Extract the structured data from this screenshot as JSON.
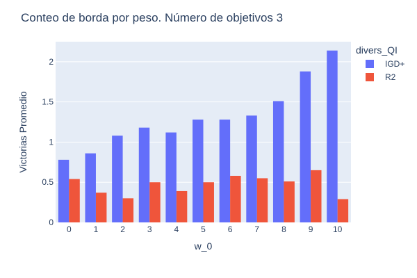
{
  "chart_data": {
    "type": "bar",
    "title": "Conteo de borda por peso. Número de objetivos 3",
    "xlabel": "w_0",
    "ylabel": "Victorias Promedio",
    "categories": [
      "0",
      "1",
      "2",
      "3",
      "4",
      "5",
      "6",
      "7",
      "8",
      "9",
      "10"
    ],
    "series": [
      {
        "name": "IGD+",
        "color": "#636efa",
        "values": [
          0.78,
          0.86,
          1.08,
          1.18,
          1.12,
          1.28,
          1.28,
          1.33,
          1.51,
          1.88,
          2.14
        ]
      },
      {
        "name": "R2",
        "color": "#ef553b",
        "values": [
          0.54,
          0.37,
          0.3,
          0.5,
          0.39,
          0.5,
          0.58,
          0.55,
          0.51,
          0.65,
          0.29
        ]
      }
    ],
    "ylim": [
      0,
      2.25
    ],
    "yticks": [
      0,
      0.5,
      1,
      1.5,
      2
    ],
    "yticklabels": [
      "0",
      "0.5",
      "1",
      "1.5",
      "2"
    ],
    "legend": {
      "title": "divers_QI",
      "position": "top-right"
    },
    "grid": true,
    "plot_background": "#e5ecf6"
  }
}
